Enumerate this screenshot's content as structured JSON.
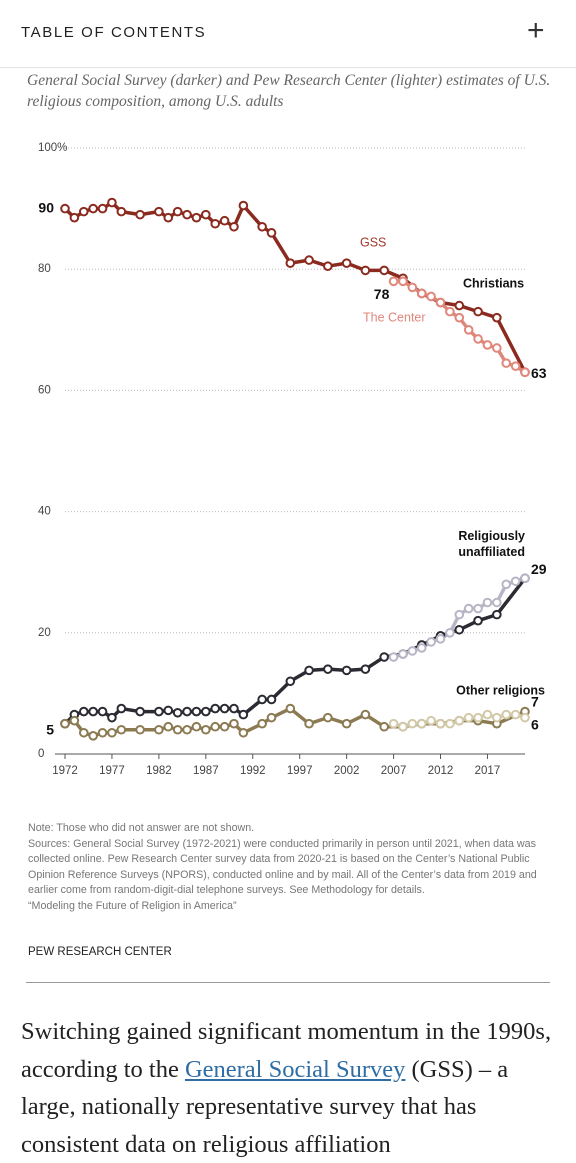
{
  "header": {
    "title": "TABLE OF CONTENTS",
    "button": "+"
  },
  "chart_data": {
    "type": "line",
    "title": "General Social Survey (darker) and Pew Research Center (lighter) estimates of U.S. religious composition, among U.S. adults",
    "sources": [
      "GSS",
      "The Center"
    ],
    "xlim": [
      1972,
      2021
    ],
    "xticks": [
      1972,
      1977,
      1982,
      1987,
      1992,
      1997,
      2002,
      2007,
      2012,
      2017
    ],
    "ylim": [
      0,
      100
    ],
    "yticks": [
      0,
      20,
      40,
      60,
      80,
      {
        "value": 100,
        "label": "100%"
      }
    ],
    "grid": true,
    "groups": [
      {
        "name": "Christians",
        "series": [
          {
            "color": "#8b2a1e",
            "x": [
              1972,
              1973,
              1974,
              1975,
              1976,
              1977,
              1978,
              1980,
              1982,
              1983,
              1984,
              1985,
              1986,
              1987,
              1988,
              1989,
              1990,
              1991,
              1993,
              1994,
              1996,
              1998,
              2000,
              2002,
              2004,
              2006,
              2008,
              2010,
              2012,
              2014,
              2016,
              2018,
              2021
            ],
            "values": [
              90,
              88.5,
              89.5,
              90,
              90,
              91,
              89.5,
              89,
              89.5,
              88.5,
              89.5,
              89,
              88.5,
              89,
              87.5,
              88,
              87,
              90.5,
              87,
              86,
              81,
              81.5,
              80.5,
              81,
              79.8,
              79.8,
              78.5,
              76,
              74.5,
              74,
              73,
              72,
              63
            ],
            "value_labels": [
              "90",
              null,
              null,
              null,
              null,
              null,
              null,
              null,
              null,
              null,
              null,
              null,
              null,
              null,
              null,
              null,
              null,
              null,
              null,
              null,
              null,
              null,
              null,
              null,
              null,
              null,
              null,
              null,
              null,
              null,
              null,
              null,
              "63"
            ]
          },
          {
            "color": "#e0877c",
            "x": [
              2007,
              2008,
              2009,
              2010,
              2011,
              2012,
              2013,
              2014,
              2015,
              2016,
              2017,
              2018,
              2019,
              2020,
              2021
            ],
            "values": [
              78,
              78,
              77,
              76,
              75.5,
              74.5,
              73,
              72,
              70,
              68.5,
              67.5,
              67,
              64.5,
              64,
              63
            ],
            "value_labels": [
              "78",
              null,
              null,
              null,
              null,
              null,
              null,
              null,
              null,
              null,
              null,
              null,
              null,
              null,
              null
            ]
          }
        ]
      },
      {
        "name": "Religiously unaffiliated",
        "series": [
          {
            "color": "#2b2b33",
            "x": [
              1972,
              1973,
              1974,
              1975,
              1976,
              1977,
              1978,
              1980,
              1982,
              1983,
              1984,
              1985,
              1986,
              1987,
              1988,
              1989,
              1990,
              1991,
              1993,
              1994,
              1996,
              1998,
              2000,
              2002,
              2004,
              2006,
              2008,
              2010,
              2012,
              2014,
              2016,
              2018,
              2021
            ],
            "values": [
              5,
              6.5,
              7,
              7,
              7,
              6,
              7.5,
              7,
              7,
              7.2,
              6.8,
              7,
              7,
              7,
              7.5,
              7.5,
              7.5,
              6.5,
              9,
              9,
              12,
              13.8,
              14,
              13.8,
              14,
              16,
              16.5,
              18,
              19.5,
              20.5,
              22,
              23,
              29
            ],
            "value_labels": [
              "5",
              null,
              null,
              null,
              null,
              null,
              null,
              null,
              null,
              null,
              null,
              null,
              null,
              null,
              null,
              null,
              null,
              null,
              null,
              null,
              null,
              null,
              null,
              null,
              null,
              null,
              null,
              null,
              null,
              null,
              null,
              null,
              "29"
            ]
          },
          {
            "color": "#b9b5c6",
            "x": [
              2007,
              2008,
              2009,
              2010,
              2011,
              2012,
              2013,
              2014,
              2015,
              2016,
              2017,
              2018,
              2019,
              2020,
              2021
            ],
            "values": [
              16,
              16.5,
              17,
              17.5,
              18.5,
              19,
              20,
              23,
              24,
              24,
              25,
              25,
              28,
              28.5,
              29
            ],
            "value_labels": [
              null,
              null,
              null,
              null,
              null,
              null,
              null,
              null,
              null,
              null,
              null,
              null,
              null,
              null,
              null
            ]
          }
        ]
      },
      {
        "name": "Other religions",
        "series": [
          {
            "color": "#8c7b52",
            "x": [
              1972,
              1973,
              1974,
              1975,
              1976,
              1977,
              1978,
              1980,
              1982,
              1983,
              1984,
              1985,
              1986,
              1987,
              1988,
              1989,
              1990,
              1991,
              1993,
              1994,
              1996,
              1998,
              2000,
              2002,
              2004,
              2006,
              2008,
              2010,
              2012,
              2014,
              2016,
              2018,
              2021
            ],
            "values": [
              5,
              5.5,
              3.5,
              3,
              3.5,
              3.5,
              4,
              4,
              4,
              4.5,
              4,
              4,
              4.5,
              4,
              4.5,
              4.5,
              5,
              3.5,
              5,
              6,
              7.5,
              5,
              6,
              5,
              6.5,
              4.5,
              4.5,
              5,
              5,
              5.5,
              5.5,
              5,
              7
            ],
            "value_labels": [
              null,
              null,
              null,
              null,
              null,
              null,
              null,
              null,
              null,
              null,
              null,
              null,
              null,
              null,
              null,
              null,
              null,
              null,
              null,
              null,
              null,
              null,
              null,
              null,
              null,
              null,
              null,
              null,
              null,
              null,
              null,
              null,
              "7"
            ]
          },
          {
            "color": "#d2c9a8",
            "x": [
              2007,
              2008,
              2009,
              2010,
              2011,
              2012,
              2013,
              2014,
              2015,
              2016,
              2017,
              2018,
              2019,
              2020,
              2021
            ],
            "values": [
              5,
              4.5,
              5,
              5,
              5.5,
              5,
              5,
              5.5,
              6,
              6,
              6.5,
              6,
              6.5,
              6.5,
              6
            ],
            "value_labels": [
              null,
              null,
              null,
              null,
              null,
              null,
              null,
              null,
              null,
              null,
              null,
              null,
              null,
              null,
              "6"
            ]
          }
        ]
      }
    ]
  },
  "notes": [
    "Note: Those who did not answer are not shown.",
    "Sources: General Social Survey (1972-2021) were conducted primarily in person until 2021, when data was collected online. Pew Research Center survey data from 2020-21 is based on the Center’s National Public Opinion Reference Surveys (NPORS), conducted online and by mail. All of the Center’s data from 2019 and earlier come from random-digit-dial telephone surveys. See Methodology for details.",
    "“Modeling the Future of Religion in America”"
  ],
  "source": "PEW RESEARCH CENTER",
  "article": {
    "text": [
      "Switching gained significant momentum in the 1990s, according to the ",
      " (GSS) – a large, nationally representative survey that has consistent data on religious affiliation"
    ],
    "link": "General Social Survey"
  }
}
